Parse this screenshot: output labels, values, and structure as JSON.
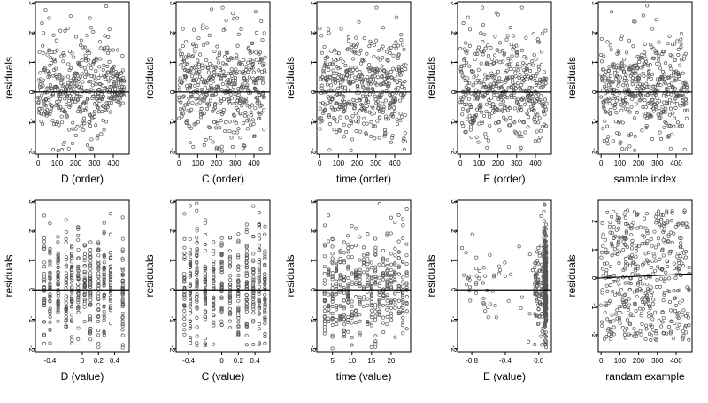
{
  "style": {
    "point_color": "#555555",
    "line_color": "#000000",
    "background": "#ffffff"
  },
  "chart_data": [
    {
      "type": "scatter",
      "xlabel": "D (order)",
      "ylabel": "residuals",
      "xlim": [
        -15,
        485
      ],
      "ylim": [
        -2.1,
        3.05
      ],
      "xticks": [
        0,
        100,
        200,
        300,
        400
      ],
      "yticks": [
        -2,
        -1,
        0,
        1,
        2,
        3
      ],
      "hline": 0,
      "n": 460,
      "gen": "order_fan",
      "seed": 11
    },
    {
      "type": "scatter",
      "xlabel": "C (order)",
      "ylabel": "residuals",
      "xlim": [
        -15,
        485
      ],
      "ylim": [
        -2.1,
        3.05
      ],
      "xticks": [
        0,
        100,
        200,
        300,
        400
      ],
      "yticks": [
        -2,
        -1,
        0,
        1,
        2,
        3
      ],
      "hline": 0,
      "n": 460,
      "gen": "order",
      "seed": 23
    },
    {
      "type": "scatter",
      "xlabel": "time (order)",
      "ylabel": "residuals",
      "xlim": [
        -15,
        485
      ],
      "ylim": [
        -2.1,
        3.05
      ],
      "xticks": [
        0,
        100,
        200,
        300,
        400
      ],
      "yticks": [
        -2,
        -1,
        0,
        1,
        2,
        3
      ],
      "hline": 0,
      "n": 460,
      "gen": "order",
      "seed": 37
    },
    {
      "type": "scatter",
      "xlabel": "E (order)",
      "ylabel": "residuals",
      "xlim": [
        -15,
        485
      ],
      "ylim": [
        -2.1,
        3.05
      ],
      "xticks": [
        0,
        100,
        200,
        300,
        400
      ],
      "yticks": [
        -2,
        -1,
        0,
        1,
        2,
        3
      ],
      "hline": 0,
      "n": 460,
      "gen": "order",
      "seed": 41
    },
    {
      "type": "scatter",
      "xlabel": "sample index",
      "ylabel": "residuals",
      "xlim": [
        -15,
        485
      ],
      "ylim": [
        -2.1,
        3.05
      ],
      "xticks": [
        0,
        100,
        200,
        300,
        400
      ],
      "yticks": [
        -2,
        -1,
        0,
        1,
        2,
        3
      ],
      "hline": 0,
      "n": 460,
      "gen": "order",
      "seed": 53
    },
    {
      "type": "scatter",
      "xlabel": "D (value)",
      "ylabel": "residuals",
      "xlim": [
        -0.58,
        0.58
      ],
      "ylim": [
        -2.1,
        3.05
      ],
      "xticks": [
        -0.4,
        0,
        0.2,
        0.4
      ],
      "yticks": [
        -2,
        -1,
        0,
        1,
        2,
        3
      ],
      "hline": 0,
      "n": 460,
      "gen": "value_discrete",
      "levels": [
        -0.47,
        -0.4,
        -0.3,
        -0.2,
        -0.13,
        -0.05,
        0.03,
        0.1,
        0.2,
        0.27,
        0.35,
        0.5
      ],
      "seed": 61
    },
    {
      "type": "scatter",
      "xlabel": "C (value)",
      "ylabel": "residuals",
      "xlim": [
        -0.55,
        0.58
      ],
      "ylim": [
        -2.1,
        3.05
      ],
      "xticks": [
        -0.4,
        0,
        0.2,
        0.4
      ],
      "yticks": [
        -2,
        -1,
        0,
        1,
        2,
        3
      ],
      "hline": 0,
      "n": 460,
      "gen": "value_discrete",
      "levels": [
        -0.45,
        -0.38,
        -0.3,
        -0.2,
        -0.1,
        0.0,
        0.1,
        0.2,
        0.3,
        0.38,
        0.45,
        0.52
      ],
      "seed": 71
    },
    {
      "type": "scatter",
      "xlabel": "time (value)",
      "ylabel": "residuals",
      "xlim": [
        1,
        25
      ],
      "ylim": [
        -2.1,
        3.05
      ],
      "xticks": [
        5,
        10,
        15,
        20
      ],
      "yticks": [
        -2,
        -1,
        0,
        1,
        2,
        3
      ],
      "hline": 0,
      "n": 460,
      "gen": "value_discrete",
      "levels": [
        3,
        4,
        5,
        6,
        7,
        8,
        9,
        10,
        11,
        12,
        13,
        14,
        15,
        16,
        17,
        18,
        19,
        20,
        21,
        22,
        23,
        24
      ],
      "seed": 83
    },
    {
      "type": "scatter",
      "xlabel": "E (value)",
      "ylabel": "residuals",
      "xlim": [
        -0.97,
        0.15
      ],
      "ylim": [
        -2.1,
        3.05
      ],
      "xticks": [
        -0.8,
        -0.4,
        0.0
      ],
      "yticks": [
        -2,
        -1,
        0,
        1,
        2,
        3
      ],
      "hline": 0,
      "n": 460,
      "gen": "value_skew",
      "seed": 97
    },
    {
      "type": "scatter",
      "xlabel": "randam example",
      "ylabel": "residuals",
      "xlim": [
        -15,
        485
      ],
      "ylim": [
        -2.6,
        2.75
      ],
      "xticks": [
        0,
        100,
        200,
        300,
        400
      ],
      "yticks": [
        -2,
        -1,
        0,
        1,
        2
      ],
      "hline": 0,
      "hline_slope": 0.0003,
      "n": 460,
      "gen": "uniform",
      "seed": 101
    }
  ]
}
